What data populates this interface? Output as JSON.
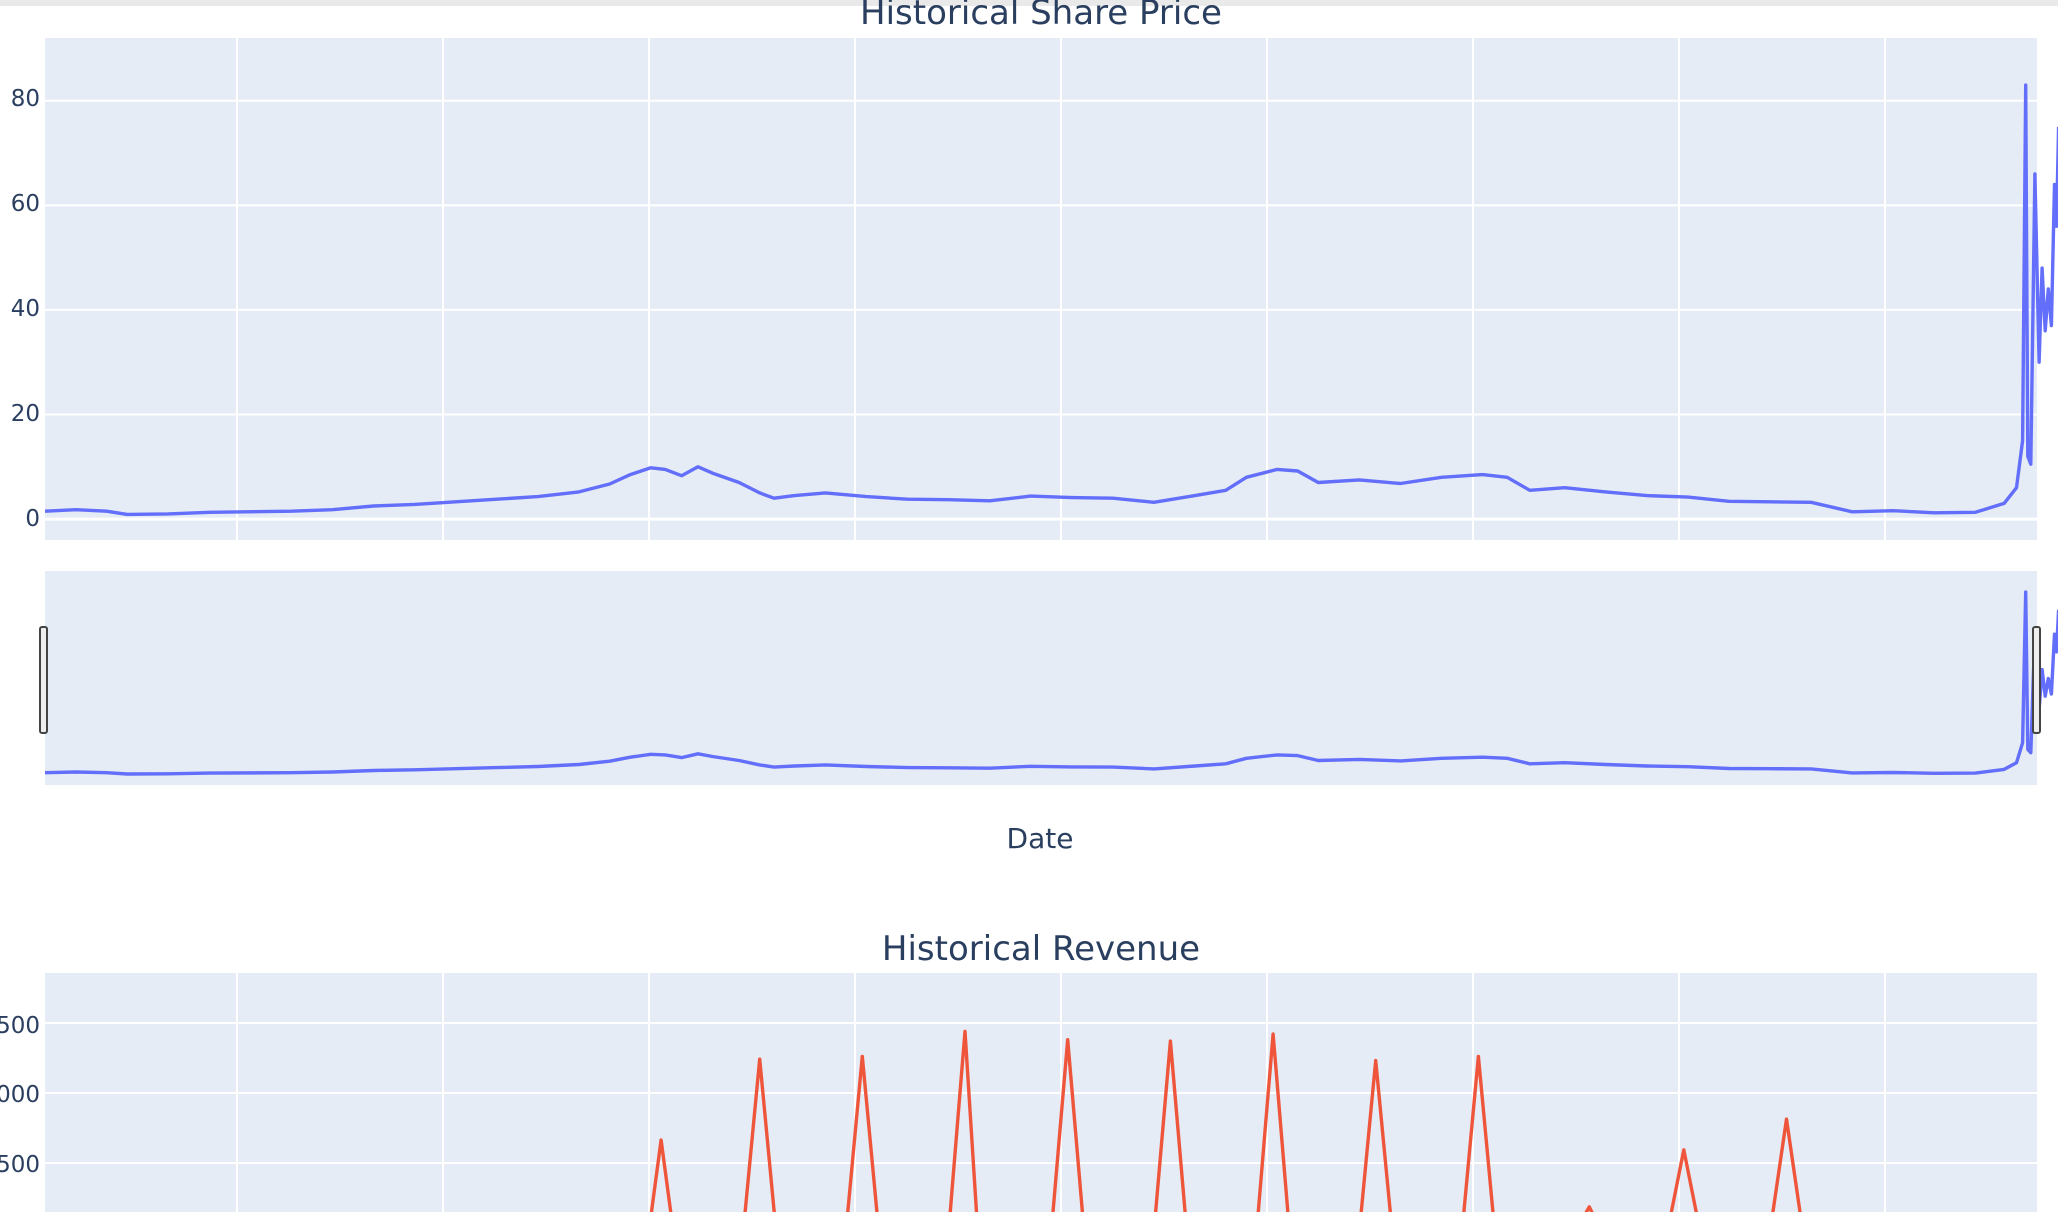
{
  "colors": {
    "price": "#636efa",
    "revenue": "#ef553b",
    "plot_bg": "#e5ecf6",
    "text": "#2a3f5f"
  },
  "chart_data": [
    {
      "type": "line",
      "title": "Historical Share Price",
      "xlabel": "Date",
      "ylabel": "",
      "ylim": [
        -4,
        92
      ],
      "yticks": [
        "0",
        "20",
        "40",
        "60",
        "80"
      ],
      "x_range": [
        0,
        97
      ],
      "x_grid_count": 9,
      "rangeslider": true,
      "series": [
        {
          "values": [
            [
              0,
              1.5
            ],
            [
              1.5,
              1.8
            ],
            [
              3,
              1.5
            ],
            [
              4,
              0.9
            ],
            [
              6,
              1
            ],
            [
              8,
              1.3
            ],
            [
              12,
              1.5
            ],
            [
              14,
              1.8
            ],
            [
              16,
              2.5
            ],
            [
              18,
              2.8
            ],
            [
              20,
              3.3
            ],
            [
              22,
              3.8
            ],
            [
              24,
              4.3
            ],
            [
              26,
              5.2
            ],
            [
              27.5,
              6.7
            ],
            [
              28.5,
              8.5
            ],
            [
              29.5,
              9.8
            ],
            [
              30.2,
              9.5
            ],
            [
              31,
              8.3
            ],
            [
              31.8,
              10
            ],
            [
              32.5,
              8.8
            ],
            [
              33.8,
              7
            ],
            [
              34.8,
              5
            ],
            [
              35.5,
              4
            ],
            [
              36.5,
              4.5
            ],
            [
              38,
              5
            ],
            [
              40,
              4.3
            ],
            [
              42,
              3.8
            ],
            [
              44,
              3.7
            ],
            [
              46,
              3.5
            ],
            [
              48,
              4.4
            ],
            [
              50,
              4.1
            ],
            [
              52,
              4
            ],
            [
              54,
              3.2
            ],
            [
              56,
              4.5
            ],
            [
              57.5,
              5.5
            ],
            [
              58.5,
              8
            ],
            [
              60,
              9.5
            ],
            [
              61,
              9.2
            ],
            [
              62,
              7
            ],
            [
              64,
              7.5
            ],
            [
              66,
              6.8
            ],
            [
              68,
              8
            ],
            [
              70,
              8.5
            ],
            [
              71.2,
              8
            ],
            [
              72.3,
              5.5
            ],
            [
              74,
              6
            ],
            [
              76,
              5.2
            ],
            [
              78,
              4.5
            ],
            [
              80,
              4.2
            ],
            [
              82,
              3.4
            ],
            [
              84,
              3.3
            ],
            [
              86,
              3.2
            ],
            [
              88,
              1.4
            ],
            [
              90,
              1.6
            ],
            [
              92,
              1.2
            ],
            [
              94,
              1.3
            ],
            [
              95.4,
              3
            ],
            [
              96,
              6
            ],
            [
              96.3,
              15
            ],
            [
              96.45,
              83
            ],
            [
              96.55,
              12
            ],
            [
              96.7,
              10.5
            ],
            [
              96.9,
              66
            ],
            [
              97.1,
              30
            ],
            [
              97.25,
              48
            ],
            [
              97.4,
              36
            ],
            [
              97.55,
              44
            ],
            [
              97.7,
              37
            ],
            [
              97.85,
              64
            ],
            [
              97.95,
              56
            ],
            [
              98.05,
              75
            ]
          ]
        }
      ]
    },
    {
      "type": "line",
      "title": "Historical Revenue",
      "xlabel": "",
      "ylabel": "",
      "ylim": [
        0,
        1750
      ],
      "yticks": [
        "500",
        "000",
        "500"
      ],
      "x_range": [
        0,
        97
      ],
      "x_grid_count": 9,
      "series": [
        {
          "values": [
            [
              24.6,
              50
            ],
            [
              25,
              85
            ],
            [
              25.4,
              0
            ],
            [
              29.4,
              0
            ],
            [
              30,
              660
            ],
            [
              30.6,
              0
            ],
            [
              34,
              0
            ],
            [
              34.8,
              1240
            ],
            [
              35.6,
              0
            ],
            [
              39,
              0
            ],
            [
              39.8,
              1260
            ],
            [
              40.6,
              0
            ],
            [
              44,
              0
            ],
            [
              44.8,
              1440
            ],
            [
              45.4,
              50
            ],
            [
              46.2,
              0
            ],
            [
              49,
              0
            ],
            [
              49.8,
              1380
            ],
            [
              50.6,
              0
            ],
            [
              54,
              0
            ],
            [
              54.8,
              1370
            ],
            [
              55.6,
              0
            ],
            [
              59,
              0
            ],
            [
              59.8,
              1420
            ],
            [
              60.6,
              0
            ],
            [
              64,
              0
            ],
            [
              64.8,
              1230
            ],
            [
              65.6,
              0
            ],
            [
              69,
              0
            ],
            [
              69.8,
              1260
            ],
            [
              70.6,
              0
            ],
            [
              74.5,
              0
            ],
            [
              75.2,
              180
            ],
            [
              75.8,
              0
            ],
            [
              79,
              0
            ],
            [
              79.8,
              590
            ],
            [
              80.6,
              0
            ],
            [
              84,
              0
            ],
            [
              84.8,
              810
            ],
            [
              85.6,
              0
            ]
          ]
        }
      ]
    }
  ]
}
